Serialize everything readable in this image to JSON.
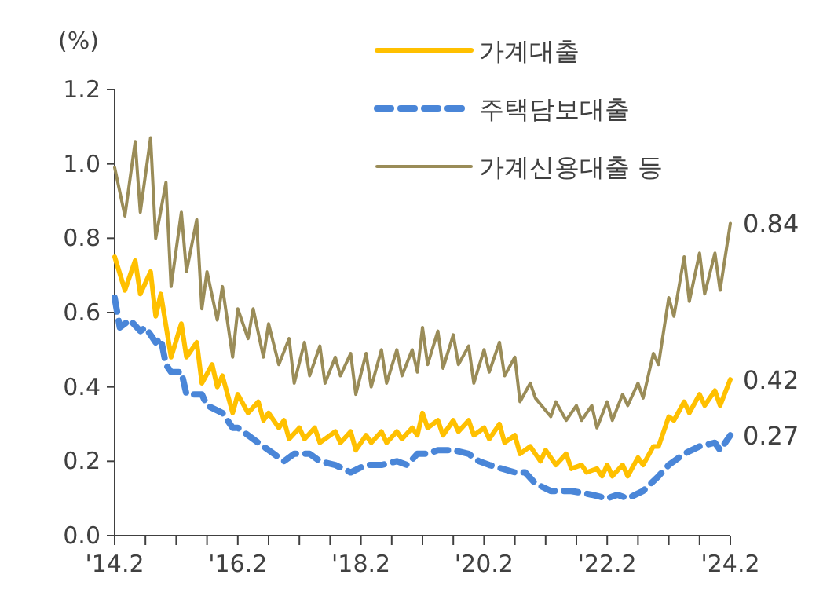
{
  "chart_data": {
    "type": "line",
    "ylabel": "(%)",
    "legend": "top right",
    "grid": false,
    "marker": "none",
    "xlim": [
      "2014-02",
      "2024-02"
    ],
    "xticks": [
      {
        "value": "2014-02",
        "label": "'14.2"
      },
      {
        "value": "2014-08",
        "label": null
      },
      {
        "value": "2015-02",
        "label": null
      },
      {
        "value": "2015-08",
        "label": null
      },
      {
        "value": "2016-02",
        "label": "'16.2"
      },
      {
        "value": "2016-08",
        "label": null
      },
      {
        "value": "2017-02",
        "label": null
      },
      {
        "value": "2017-08",
        "label": null
      },
      {
        "value": "2018-02",
        "label": "'18.2"
      },
      {
        "value": "2018-08",
        "label": null
      },
      {
        "value": "2019-02",
        "label": null
      },
      {
        "value": "2019-08",
        "label": null
      },
      {
        "value": "2020-02",
        "label": "'20.2"
      },
      {
        "value": "2020-08",
        "label": null
      },
      {
        "value": "2021-02",
        "label": null
      },
      {
        "value": "2021-08",
        "label": null
      },
      {
        "value": "2022-02",
        "label": "'22.2"
      },
      {
        "value": "2022-08",
        "label": null
      },
      {
        "value": "2023-02",
        "label": null
      },
      {
        "value": "2023-08",
        "label": null
      },
      {
        "value": "2024-02",
        "label": "'24.2"
      }
    ],
    "ylim": [
      0,
      1.2
    ],
    "yticks": [
      {
        "value": 0,
        "label": "0.0"
      },
      0.2,
      0.4,
      0.6,
      0.8,
      {
        "value": 1,
        "label": "1.0"
      },
      1.2
    ],
    "series": [
      {
        "name": "가계대출",
        "color": "#ffc000",
        "line_style": "solid",
        "x": [
          "2014-02",
          "2014-04",
          "2014-06",
          "2014-07",
          "2014-09",
          "2014-10",
          "2014-11",
          "2015-01",
          "2015-03",
          "2015-04",
          "2015-06",
          "2015-07",
          "2015-09",
          "2015-10",
          "2015-11",
          "2016-01",
          "2016-02",
          "2016-04",
          "2016-06",
          "2016-07",
          "2016-08",
          "2016-10",
          "2016-11",
          "2016-12",
          "2017-02",
          "2017-03",
          "2017-05",
          "2017-06",
          "2017-09",
          "2017-10",
          "2017-12",
          "2018-01",
          "2018-03",
          "2018-04",
          "2018-06",
          "2018-07",
          "2018-09",
          "2018-10",
          "2018-12",
          "2019-01",
          "2019-02",
          "2019-03",
          "2019-05",
          "2019-06",
          "2019-08",
          "2019-09",
          "2019-11",
          "2019-12",
          "2020-02",
          "2020-03",
          "2020-05",
          "2020-06",
          "2020-08",
          "2020-09",
          "2020-11",
          "2021-01",
          "2021-02",
          "2021-04",
          "2021-06",
          "2021-07",
          "2021-09",
          "2021-10",
          "2021-12",
          "2022-01",
          "2022-02",
          "2022-03",
          "2022-05",
          "2022-06",
          "2022-08",
          "2022-09",
          "2022-11",
          "2022-12",
          "2023-02",
          "2023-03",
          "2023-05",
          "2023-06",
          "2023-08",
          "2023-09",
          "2023-11",
          "2023-12",
          "2024-02"
        ],
        "values": [
          0.75,
          0.66,
          0.74,
          0.65,
          0.71,
          0.59,
          0.65,
          0.48,
          0.57,
          0.48,
          0.52,
          0.41,
          0.46,
          0.4,
          0.43,
          0.33,
          0.38,
          0.33,
          0.36,
          0.31,
          0.33,
          0.29,
          0.31,
          0.26,
          0.29,
          0.26,
          0.29,
          0.25,
          0.28,
          0.25,
          0.28,
          0.23,
          0.27,
          0.25,
          0.28,
          0.25,
          0.28,
          0.26,
          0.29,
          0.27,
          0.33,
          0.29,
          0.31,
          0.27,
          0.31,
          0.28,
          0.31,
          0.27,
          0.29,
          0.26,
          0.3,
          0.25,
          0.27,
          0.22,
          0.24,
          0.2,
          0.23,
          0.19,
          0.22,
          0.18,
          0.19,
          0.17,
          0.18,
          0.16,
          0.19,
          0.16,
          0.19,
          0.16,
          0.21,
          0.19,
          0.24,
          0.24,
          0.32,
          0.31,
          0.36,
          0.33,
          0.38,
          0.35,
          0.39,
          0.35,
          0.42
        ]
      },
      {
        "name": "주택담보대출",
        "color": "#4a86d8",
        "line_style": "dashed",
        "x": [
          "2014-02",
          "2014-03",
          "2014-05",
          "2014-07",
          "2014-08",
          "2014-10",
          "2014-11",
          "2014-12",
          "2015-01",
          "2015-03",
          "2015-04",
          "2015-07",
          "2015-08",
          "2015-11",
          "2016-01",
          "2016-02",
          "2016-05",
          "2016-07",
          "2016-09",
          "2016-11",
          "2017-01",
          "2017-04",
          "2017-06",
          "2017-09",
          "2017-12",
          "2018-03",
          "2018-06",
          "2018-09",
          "2018-11",
          "2019-01",
          "2019-03",
          "2019-05",
          "2019-08",
          "2019-11",
          "2020-01",
          "2020-03",
          "2020-08",
          "2020-10",
          "2020-12",
          "2021-03",
          "2021-07",
          "2021-11",
          "2022-02",
          "2022-04",
          "2022-06",
          "2022-09",
          "2022-12",
          "2023-02",
          "2023-05",
          "2023-08",
          "2023-11",
          "2023-12",
          "2024-02"
        ],
        "values": [
          0.64,
          0.56,
          0.58,
          0.55,
          0.56,
          0.52,
          0.53,
          0.46,
          0.44,
          0.44,
          0.38,
          0.38,
          0.35,
          0.33,
          0.29,
          0.29,
          0.26,
          0.24,
          0.22,
          0.2,
          0.22,
          0.22,
          0.2,
          0.19,
          0.17,
          0.19,
          0.19,
          0.2,
          0.19,
          0.22,
          0.22,
          0.23,
          0.23,
          0.22,
          0.2,
          0.19,
          0.17,
          0.17,
          0.14,
          0.12,
          0.12,
          0.11,
          0.1,
          0.11,
          0.1,
          0.12,
          0.16,
          0.19,
          0.22,
          0.24,
          0.25,
          0.23,
          0.27
        ]
      },
      {
        "name": "가계신용대출 등",
        "color": "#9a8c58",
        "line_style": "solid",
        "x": [
          "2014-02",
          "2014-04",
          "2014-06",
          "2014-07",
          "2014-09",
          "2014-10",
          "2014-12",
          "2015-01",
          "2015-03",
          "2015-04",
          "2015-06",
          "2015-07",
          "2015-08",
          "2015-10",
          "2015-11",
          "2016-01",
          "2016-02",
          "2016-04",
          "2016-05",
          "2016-07",
          "2016-08",
          "2016-10",
          "2016-12",
          "2017-01",
          "2017-03",
          "2017-04",
          "2017-06",
          "2017-07",
          "2017-09",
          "2017-10",
          "2017-12",
          "2018-01",
          "2018-03",
          "2018-04",
          "2018-06",
          "2018-07",
          "2018-09",
          "2018-10",
          "2018-12",
          "2019-01",
          "2019-02",
          "2019-03",
          "2019-05",
          "2019-06",
          "2019-08",
          "2019-09",
          "2019-11",
          "2019-12",
          "2020-02",
          "2020-03",
          "2020-05",
          "2020-06",
          "2020-08",
          "2020-09",
          "2020-11",
          "2020-12",
          "2021-03",
          "2021-04",
          "2021-06",
          "2021-08",
          "2021-09",
          "2021-11",
          "2021-12",
          "2022-02",
          "2022-03",
          "2022-05",
          "2022-06",
          "2022-08",
          "2022-09",
          "2022-11",
          "2022-12",
          "2023-02",
          "2023-03",
          "2023-05",
          "2023-06",
          "2023-08",
          "2023-09",
          "2023-11",
          "2023-12",
          "2024-02"
        ],
        "values": [
          0.99,
          0.86,
          1.06,
          0.87,
          1.07,
          0.8,
          0.95,
          0.67,
          0.87,
          0.71,
          0.85,
          0.61,
          0.71,
          0.58,
          0.67,
          0.48,
          0.61,
          0.53,
          0.61,
          0.48,
          0.57,
          0.46,
          0.53,
          0.41,
          0.52,
          0.43,
          0.51,
          0.41,
          0.48,
          0.43,
          0.49,
          0.38,
          0.49,
          0.4,
          0.5,
          0.41,
          0.5,
          0.43,
          0.5,
          0.44,
          0.56,
          0.46,
          0.55,
          0.45,
          0.54,
          0.46,
          0.51,
          0.41,
          0.5,
          0.44,
          0.52,
          0.43,
          0.48,
          0.36,
          0.41,
          0.37,
          0.32,
          0.36,
          0.31,
          0.35,
          0.31,
          0.35,
          0.29,
          0.36,
          0.31,
          0.38,
          0.35,
          0.41,
          0.37,
          0.49,
          0.46,
          0.64,
          0.59,
          0.75,
          0.63,
          0.76,
          0.65,
          0.76,
          0.66,
          0.84
        ]
      }
    ],
    "annotations": [
      {
        "text": "0.84",
        "x": "2024-02",
        "y": 0.84
      },
      {
        "text": "0.42",
        "x": "2024-02",
        "y": 0.42
      },
      {
        "text": "0.27",
        "x": "2024-02",
        "y": 0.27
      }
    ]
  }
}
